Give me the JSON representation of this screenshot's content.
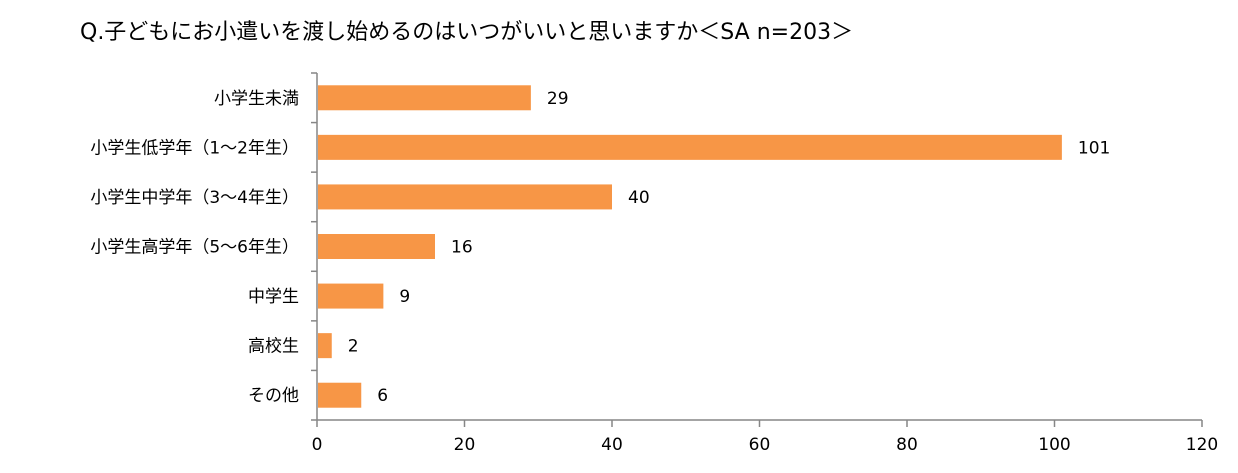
{
  "chart_data": {
    "type": "bar",
    "orientation": "horizontal",
    "title": "Q.子どもにお小遣いを渡し始めるのはいつがいいと思いますか＜SA n=203＞",
    "categories": [
      "小学生未満",
      "小学生低学年（1～2年生）",
      "小学生中学年（3～4年生）",
      "小学生高学年（5～6年生）",
      "中学生",
      "高校生",
      "その他"
    ],
    "values": [
      29,
      101,
      40,
      16,
      9,
      2,
      6
    ],
    "xlim": [
      0,
      120
    ],
    "xticks": [
      0,
      20,
      40,
      60,
      80,
      100,
      120
    ],
    "bar_color": "#F79646",
    "axis_color": "#868686",
    "grid": false,
    "legend": "none",
    "data_labels": true
  }
}
